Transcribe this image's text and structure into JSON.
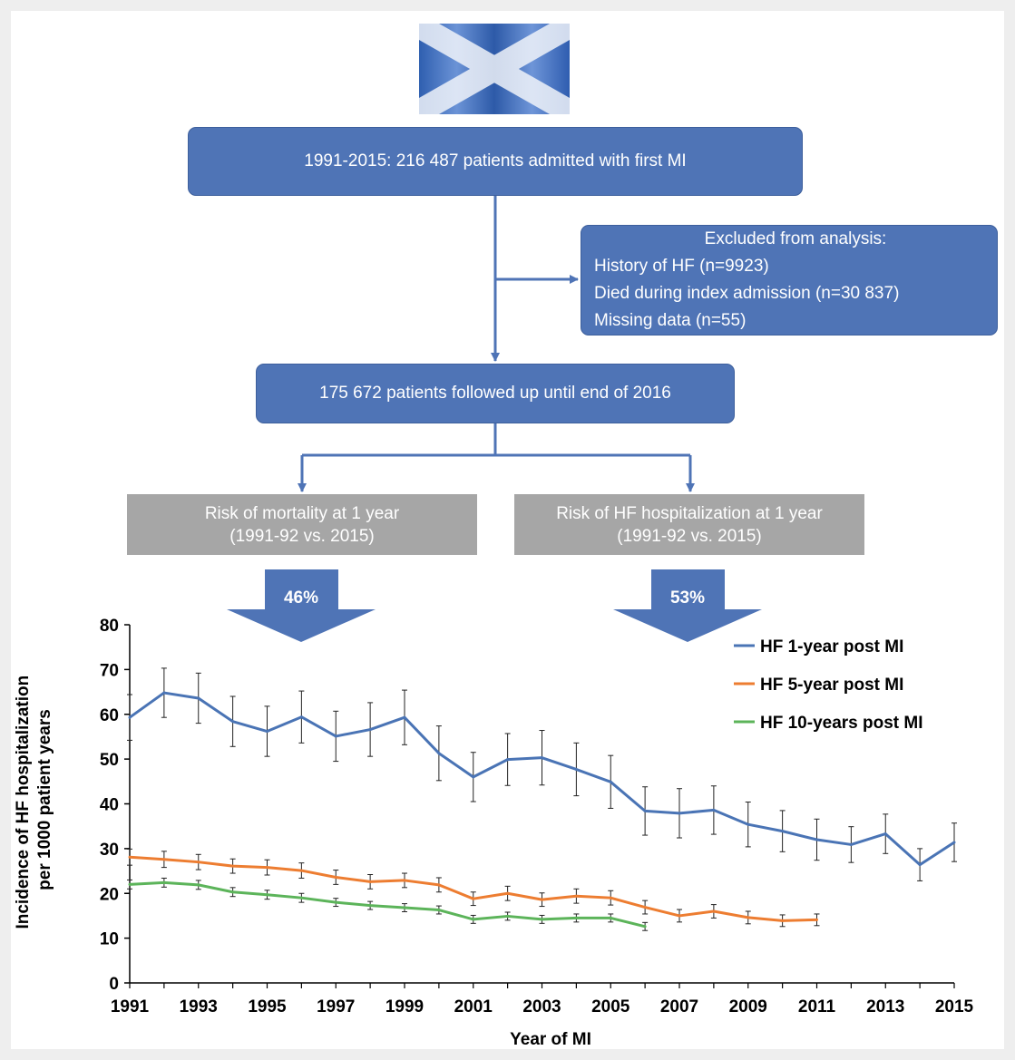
{
  "flow": {
    "top_box": "1991-2015: 216 487 patients admitted with first MI",
    "excluded": {
      "title": "Excluded from analysis:",
      "items": [
        "History of HF (n=9923)",
        "Died during index admission (n=30 837)",
        "Missing data (n=55)"
      ]
    },
    "followed_box": "175 672 patients followed up until end of 2016",
    "mortality_box": [
      "Risk of mortality at 1 year",
      "(1991-92 vs. 2015)"
    ],
    "hf_box": [
      "Risk of HF hospitalization at 1 year",
      "(1991-92 vs. 2015)"
    ],
    "mortality_arrow": "46%",
    "hf_arrow": "53%",
    "flag": "scotland-saltire-flag",
    "colors": {
      "box": "#4f74b6",
      "grey": "#a6a6a6",
      "arrow": "#4f74b6"
    }
  },
  "chart_data": {
    "type": "line",
    "xlabel": "Year of MI",
    "ylabel_lines": [
      "Incidence of HF hospitalization",
      "per 1000 patient years"
    ],
    "ylim": [
      0,
      80
    ],
    "yticks": [
      0,
      10,
      20,
      30,
      40,
      50,
      60,
      70,
      80
    ],
    "xlim": [
      1991,
      2015
    ],
    "xticks": [
      1991,
      1993,
      1995,
      1997,
      1999,
      2001,
      2003,
      2005,
      2007,
      2009,
      2011,
      2013,
      2015
    ],
    "grid": false,
    "legend_position": "top-right",
    "series": [
      {
        "name": "HF 1-year post MI",
        "color": "#4a74b5",
        "x": [
          1991,
          1992,
          1993,
          1994,
          1995,
          1996,
          1997,
          1998,
          1999,
          2000,
          2001,
          2002,
          2003,
          2004,
          2005,
          2006,
          2007,
          2008,
          2009,
          2010,
          2011,
          2012,
          2013,
          2014,
          2015
        ],
        "y": [
          59.3,
          64.8,
          63.6,
          58.4,
          56.2,
          59.4,
          55.1,
          56.6,
          59.3,
          51.3,
          46.0,
          49.9,
          50.3,
          47.7,
          44.9,
          38.4,
          37.9,
          38.6,
          35.4,
          33.9,
          32.0,
          30.9,
          33.3,
          26.4,
          31.4
        ],
        "err": [
          5.1,
          5.5,
          5.6,
          5.6,
          5.6,
          5.8,
          5.6,
          6.0,
          6.1,
          6.1,
          5.5,
          5.8,
          6.1,
          5.9,
          5.9,
          5.4,
          5.5,
          5.4,
          5.0,
          4.6,
          4.6,
          4.0,
          4.4,
          3.6,
          4.3
        ]
      },
      {
        "name": "HF 5-year post MI",
        "color": "#ed7d31",
        "x": [
          1991,
          1992,
          1993,
          1994,
          1995,
          1996,
          1997,
          1998,
          1999,
          2000,
          2001,
          2002,
          2003,
          2004,
          2005,
          2006,
          2007,
          2008,
          2009,
          2010,
          2011
        ],
        "y": [
          28.1,
          27.6,
          27.0,
          26.1,
          25.8,
          25.1,
          23.6,
          22.6,
          22.9,
          21.9,
          18.8,
          20.0,
          18.6,
          19.4,
          19.0,
          16.9,
          15.0,
          16.0,
          14.6,
          13.9,
          14.1
        ],
        "err": [
          1.8,
          1.8,
          1.7,
          1.6,
          1.7,
          1.7,
          1.6,
          1.6,
          1.6,
          1.6,
          1.5,
          1.6,
          1.5,
          1.6,
          1.6,
          1.5,
          1.4,
          1.5,
          1.4,
          1.3,
          1.3
        ]
      },
      {
        "name": "HF 10-years post MI",
        "color": "#5cb45a",
        "x": [
          1991,
          1992,
          1993,
          1994,
          1995,
          1996,
          1997,
          1998,
          1999,
          2000,
          2001,
          2002,
          2003,
          2004,
          2005,
          2006
        ],
        "y": [
          22.0,
          22.4,
          21.9,
          20.3,
          19.7,
          19.0,
          18.0,
          17.3,
          16.8,
          16.3,
          14.2,
          14.9,
          14.2,
          14.5,
          14.5,
          12.6
        ],
        "err": [
          1.0,
          1.0,
          1.0,
          1.0,
          1.0,
          1.0,
          0.9,
          0.9,
          0.9,
          0.9,
          0.9,
          0.9,
          0.9,
          0.9,
          0.9,
          0.9
        ]
      }
    ]
  }
}
